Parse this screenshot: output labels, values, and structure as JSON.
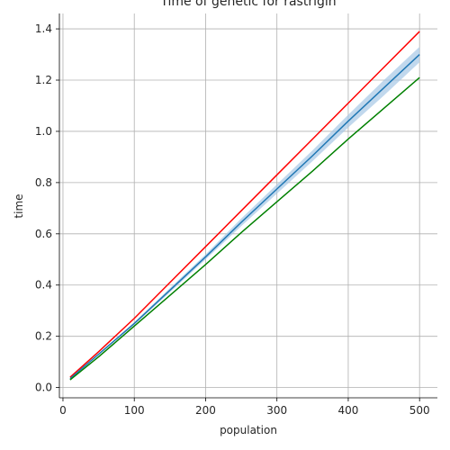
{
  "chart_data": {
    "type": "line",
    "title": "Time of genetic for rastrigin",
    "xlabel": "population",
    "ylabel": "time",
    "xlim": [
      -5,
      525
    ],
    "ylim": [
      -0.04,
      1.46
    ],
    "xticks": [
      0,
      100,
      200,
      300,
      400,
      500
    ],
    "yticks": [
      0.0,
      0.2,
      0.4,
      0.6,
      0.8,
      1.0,
      1.2,
      1.4
    ],
    "ytick_labels": [
      "0.0",
      "0.2",
      "0.4",
      "0.6",
      "0.8",
      "1.0",
      "1.2",
      "1.4"
    ],
    "grid": true,
    "series": [
      {
        "color": "#ff0000",
        "x": [
          10,
          50,
          100,
          150,
          200,
          250,
          300,
          350,
          400,
          450,
          500
        ],
        "y": [
          0.04,
          0.14,
          0.27,
          0.41,
          0.55,
          0.69,
          0.83,
          0.97,
          1.11,
          1.25,
          1.39
        ]
      },
      {
        "color": "#1f77b4",
        "band_color": "#a6c8e6",
        "x": [
          10,
          50,
          100,
          150,
          200,
          250,
          300,
          350,
          400,
          450,
          500
        ],
        "y": [
          0.035,
          0.13,
          0.25,
          0.38,
          0.51,
          0.645,
          0.775,
          0.905,
          1.04,
          1.17,
          1.3
        ],
        "y_lower": [
          0.033,
          0.127,
          0.245,
          0.372,
          0.5,
          0.63,
          0.757,
          0.884,
          1.015,
          1.14,
          1.27
        ],
        "y_upper": [
          0.037,
          0.133,
          0.255,
          0.388,
          0.52,
          0.66,
          0.793,
          0.926,
          1.065,
          1.2,
          1.33
        ]
      },
      {
        "color": "#008000",
        "x": [
          10,
          50,
          100,
          150,
          200,
          250,
          300,
          350,
          400,
          450,
          500
        ],
        "y": [
          0.03,
          0.12,
          0.24,
          0.36,
          0.48,
          0.605,
          0.725,
          0.845,
          0.97,
          1.09,
          1.21
        ]
      }
    ]
  }
}
